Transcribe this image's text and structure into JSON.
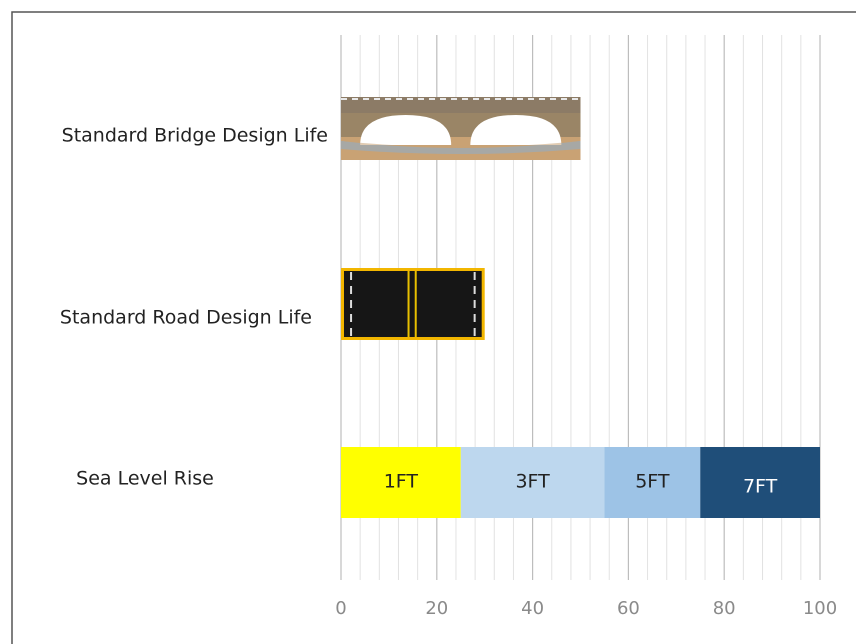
{
  "chart_data": {
    "type": "bar",
    "orientation": "horizontal",
    "categories": [
      "Standard Bridge Design Life",
      "Standard Road Design Life",
      "Sea Level Rise"
    ],
    "values": [
      50,
      30,
      null
    ],
    "series": [
      {
        "name": "1FT",
        "color": "#ffff00",
        "values": [
          null,
          null,
          25
        ]
      },
      {
        "name": "3FT",
        "color": "#bdd7ee",
        "values": [
          null,
          null,
          30
        ]
      },
      {
        "name": "5FT",
        "color": "#9dc3e6",
        "values": [
          null,
          null,
          20
        ]
      },
      {
        "name": "7FT",
        "color": "#1f4e79",
        "values": [
          null,
          null,
          25
        ]
      }
    ],
    "xlim": [
      0,
      100
    ],
    "xticks": [
      0,
      20,
      40,
      60,
      80,
      100
    ],
    "x_minor_ticks": [
      4,
      8,
      12,
      16,
      24,
      28,
      32,
      36,
      44,
      48,
      52,
      56,
      64,
      68,
      72,
      76,
      84,
      88,
      92,
      96
    ],
    "grid": true
  }
}
